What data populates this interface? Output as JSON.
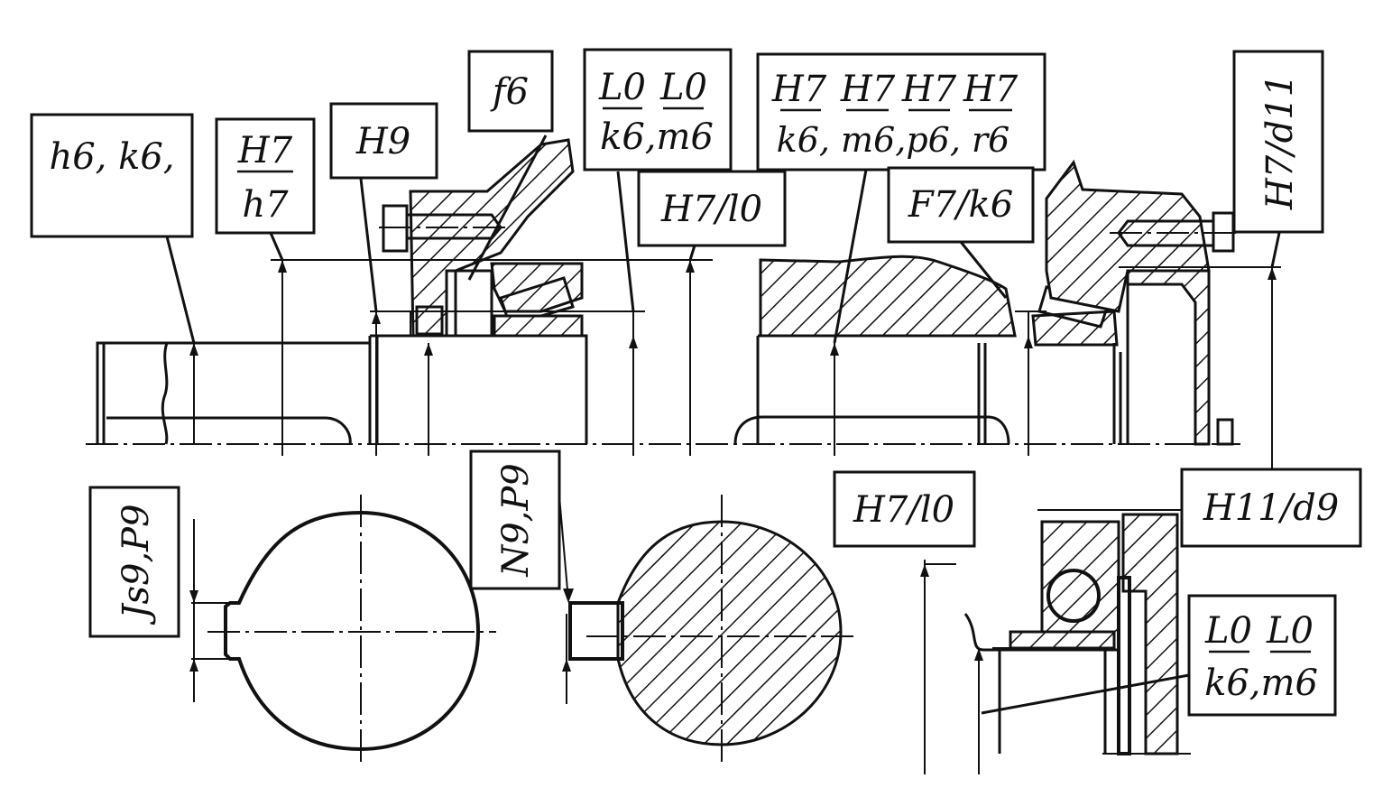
{
  "fit_labels": {
    "shaft_end": "h6, k6,",
    "sleeve_fit": {
      "num": "H7",
      "den": "h7"
    },
    "cover_bore": "H9",
    "seal_shaft": "f6",
    "bearing_inner_left": {
      "nums": [
        "L0",
        "L0"
      ],
      "den": "k6,m6"
    },
    "bearing_outer_left": "H7/l0",
    "hub_fits": {
      "nums": [
        "H7",
        "H7",
        "H7",
        "H7"
      ],
      "den": "k6, m6,p6, r6"
    },
    "spacer_fit": "F7/k6",
    "cup_fit": "H7/d11",
    "key_hub": "Js9,P9",
    "key_shaft": "N9,P9",
    "bearing_outer_right": "H7/l0",
    "cover_right": "H11/d9",
    "bearing_inner_right": {
      "nums": [
        "L0",
        "L0"
      ],
      "den": "k6,m6"
    }
  },
  "colors": {
    "ink": "#111111",
    "paper": "#ffffff"
  }
}
